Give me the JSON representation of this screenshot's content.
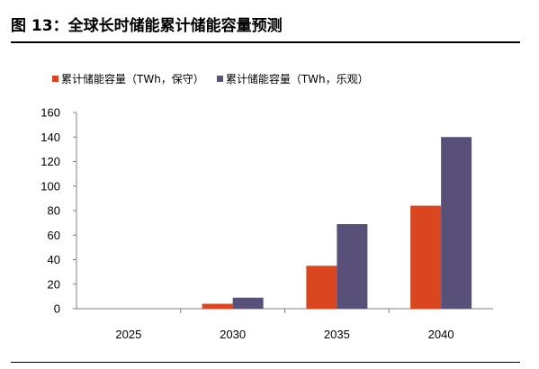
{
  "header": {
    "title": "图 13：全球长时储能累计储能容量预测"
  },
  "chart_data": {
    "type": "bar",
    "categories": [
      "2025",
      "2030",
      "2035",
      "2040"
    ],
    "series": [
      {
        "name": "累计储能容量（TWh，保守）",
        "color": "#d9461f",
        "values": [
          0,
          4,
          35,
          84
        ]
      },
      {
        "name": "累计储能容量（TWh，乐观）",
        "color": "#585079",
        "values": [
          0,
          9,
          69,
          140
        ]
      }
    ],
    "ylim": [
      0,
      160
    ],
    "yticks": [
      "0",
      "20",
      "40",
      "60",
      "80",
      "100",
      "120",
      "140",
      "160"
    ],
    "grid": false,
    "legend_position": "top-left"
  }
}
